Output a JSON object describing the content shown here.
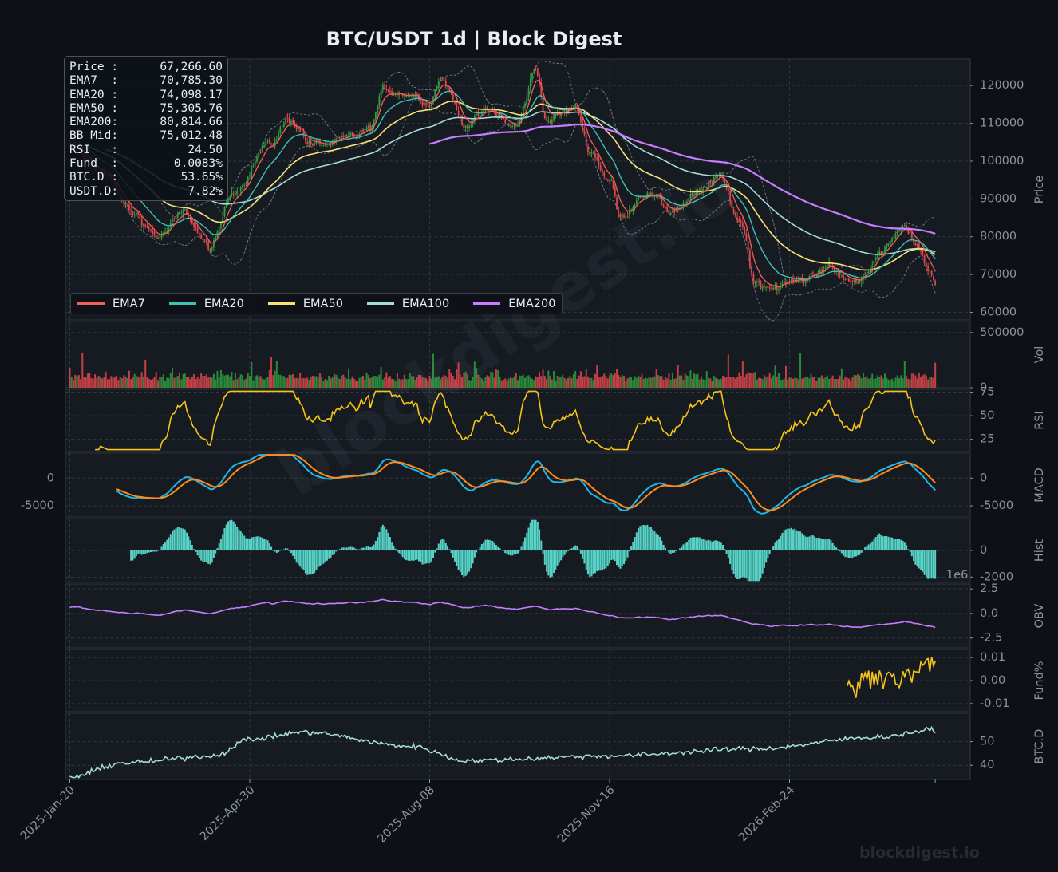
{
  "title": "BTC/USDT  1d  |  Block Digest",
  "watermark": "blockdigest.io",
  "info_box": [
    {
      "label": "Price :",
      "value": "67,266.60"
    },
    {
      "label": "EMA7  :",
      "value": "70,785.30"
    },
    {
      "label": "EMA20 :",
      "value": "74,098.17"
    },
    {
      "label": "EMA50 :",
      "value": "75,305.76"
    },
    {
      "label": "EMA200:",
      "value": "80,814.66"
    },
    {
      "label": "BB Mid:",
      "value": "75,012.48"
    },
    {
      "label": "RSI   :",
      "value": "24.50"
    },
    {
      "label": "Fund  :",
      "value": "0.0083%"
    },
    {
      "label": "BTC.D :",
      "value": "53.65%"
    },
    {
      "label": "USDT.D:",
      "value": "7.82%"
    }
  ],
  "legend": [
    {
      "name": "EMA7",
      "color": "#f0605a"
    },
    {
      "name": "EMA20",
      "color": "#3fc1b4"
    },
    {
      "name": "EMA50",
      "color": "#f6e27a"
    },
    {
      "name": "EMA100",
      "color": "#a7dbd8"
    },
    {
      "name": "EMA200",
      "color": "#c77dff"
    }
  ],
  "colors": {
    "background": "#0d1117",
    "panel": "#161b22",
    "grid": "#30363d",
    "axis_text": "#8b949e",
    "up": "#2e9e3e",
    "down": "#e0474c",
    "rsi": "#f5c518",
    "macd": "#21b6e8",
    "signal": "#ff8c1a",
    "hist": "#57d3c7",
    "obv": "#c77dff",
    "funding": "#f5c518",
    "btcd": "#a7dbd8",
    "bollinger": "#6e7681"
  },
  "chart_data": {
    "type": "line",
    "x_ticks": [
      "2025-Jan-20",
      "2025-Apr-30",
      "2025-Aug-08",
      "2025-Nov-16",
      "2026-Feb-24"
    ],
    "x_range": [
      "2025-01-20",
      "2026-05-16"
    ],
    "panels": [
      {
        "name": "price",
        "ylabel": "Price",
        "ylim": [
          58000,
          127000
        ],
        "yticks": [
          60000,
          70000,
          80000,
          90000,
          100000,
          110000,
          120000
        ],
        "series_type": "candlestick",
        "close_knots": [
          [
            "2025-01-20",
            104000
          ],
          [
            "2025-02-05",
            98000
          ],
          [
            "2025-02-25",
            86000
          ],
          [
            "2025-03-10",
            80000
          ],
          [
            "2025-03-25",
            86000
          ],
          [
            "2025-04-08",
            77000
          ],
          [
            "2025-04-22",
            93000
          ],
          [
            "2025-05-10",
            104000
          ],
          [
            "2025-05-22",
            111000
          ],
          [
            "2025-06-05",
            104000
          ],
          [
            "2025-06-20",
            105000
          ],
          [
            "2025-07-05",
            108000
          ],
          [
            "2025-07-14",
            119000
          ],
          [
            "2025-07-28",
            118000
          ],
          [
            "2025-08-08",
            116000
          ],
          [
            "2025-08-14",
            122000
          ],
          [
            "2025-08-28",
            110000
          ],
          [
            "2025-09-10",
            113000
          ],
          [
            "2025-09-25",
            109000
          ],
          [
            "2025-10-06",
            124000
          ],
          [
            "2025-10-12",
            111000
          ],
          [
            "2025-10-28",
            114000
          ],
          [
            "2025-11-05",
            103000
          ],
          [
            "2025-11-16",
            95000
          ],
          [
            "2025-11-22",
            85000
          ],
          [
            "2025-12-05",
            92000
          ],
          [
            "2025-12-20",
            87000
          ],
          [
            "2026-01-05",
            91000
          ],
          [
            "2026-01-15",
            96000
          ],
          [
            "2026-01-28",
            84000
          ],
          [
            "2026-02-05",
            68000
          ],
          [
            "2026-02-15",
            67000
          ],
          [
            "2026-03-01",
            68000
          ],
          [
            "2026-03-15",
            72000
          ],
          [
            "2026-04-01",
            68000
          ],
          [
            "2026-04-15",
            75000
          ],
          [
            "2026-04-28",
            82000
          ],
          [
            "2026-05-06",
            78000
          ],
          [
            "2026-05-14",
            70000
          ],
          [
            "2026-05-16",
            67266.6
          ]
        ],
        "ema7_last": 70785.3,
        "ema20_last": 74098.17,
        "ema50_last": 75305.76,
        "ema200_start": "2025-08-08",
        "ema200_last": 80814.66,
        "bb_mid_last": 75012.48
      },
      {
        "name": "volume",
        "ylabel": "Vol",
        "ylim": [
          0,
          600000
        ],
        "yticks": [
          0,
          500000
        ]
      },
      {
        "name": "rsi",
        "ylabel": "RSI",
        "ylim": [
          12,
          78
        ],
        "yticks": [
          25,
          50,
          75
        ],
        "last": 24.5
      },
      {
        "name": "macd",
        "ylabel": "MACD",
        "ylim": [
          -7000,
          4500
        ],
        "yticks": [
          -5000,
          0
        ],
        "left_ticks": [
          0,
          -5000
        ]
      },
      {
        "name": "hist",
        "ylabel": "Hist",
        "ylim": [
          -2400,
          2400
        ],
        "yticks": [
          -2000,
          0
        ]
      },
      {
        "name": "obv",
        "ylabel": "OBV",
        "ylim": [
          -3.5,
          3.0
        ],
        "yticks": [
          -2.5,
          0.0,
          2.5
        ],
        "scale_label": "1e6"
      },
      {
        "name": "funding",
        "ylabel": "Fund%",
        "ylim": [
          -0.0135,
          0.0135
        ],
        "yticks": [
          -0.01,
          0.0,
          0.01
        ],
        "start": "2026-03-28",
        "last": 0.0083
      },
      {
        "name": "btc_dominance",
        "ylabel": "BTC.D",
        "ylim": [
          34,
          62
        ],
        "yticks": [
          40,
          50
        ],
        "last": 53.65
      }
    ]
  }
}
